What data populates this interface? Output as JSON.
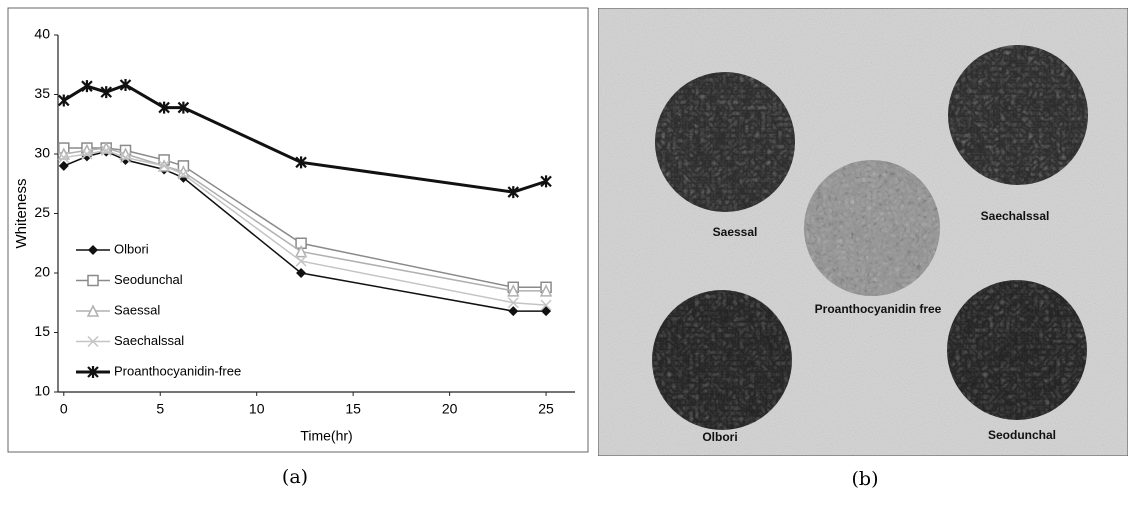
{
  "chart_data": {
    "type": "line",
    "x_label": "Time(hr)",
    "y_label": "Whiteness",
    "x": [
      0,
      1.2,
      2.2,
      3.2,
      5.2,
      6.2,
      12.3,
      23.3,
      25
    ],
    "series": [
      {
        "name": "Olbori",
        "color": "#111111",
        "marker": "diamond",
        "values": [
          29,
          29.8,
          30.2,
          29.5,
          28.7,
          28,
          20,
          16.8,
          16.8
        ]
      },
      {
        "name": "Seodunchal",
        "color": "#8a8a8a",
        "marker": "square",
        "values": [
          30.5,
          30.5,
          30.5,
          30.3,
          29.5,
          29,
          22.5,
          18.8,
          18.8
        ]
      },
      {
        "name": "Saessal",
        "color": "#b0b0b0",
        "marker": "triangle",
        "values": [
          30,
          30.3,
          30.5,
          30,
          29,
          28.5,
          21.8,
          18.5,
          18.5
        ]
      },
      {
        "name": "Saechalssal",
        "color": "#c4c4c4",
        "marker": "cross",
        "values": [
          29.7,
          30,
          30.3,
          29.7,
          29,
          28.3,
          21,
          17.5,
          17.3
        ]
      },
      {
        "name": "Proanthocyanidin-free",
        "color": "#111111",
        "marker": "star",
        "values": [
          34.5,
          35.7,
          35.2,
          35.8,
          33.9,
          33.9,
          29.3,
          26.8,
          27.7
        ]
      }
    ],
    "xlim": [
      -0.3,
      26.5
    ],
    "xticks": [
      0,
      5,
      10,
      15,
      20,
      25
    ],
    "ylim": [
      10,
      40
    ],
    "yticks": [
      10,
      15,
      20,
      25,
      30,
      35,
      40
    ],
    "grid": false,
    "legend": "lower left"
  },
  "photo": {
    "labels": [
      "Saessal",
      "Saechalssal",
      "Proanthocyanidin free",
      "Olbori",
      "Seodunchal"
    ]
  },
  "captions": {
    "a": "(a)",
    "b": "(b)"
  }
}
